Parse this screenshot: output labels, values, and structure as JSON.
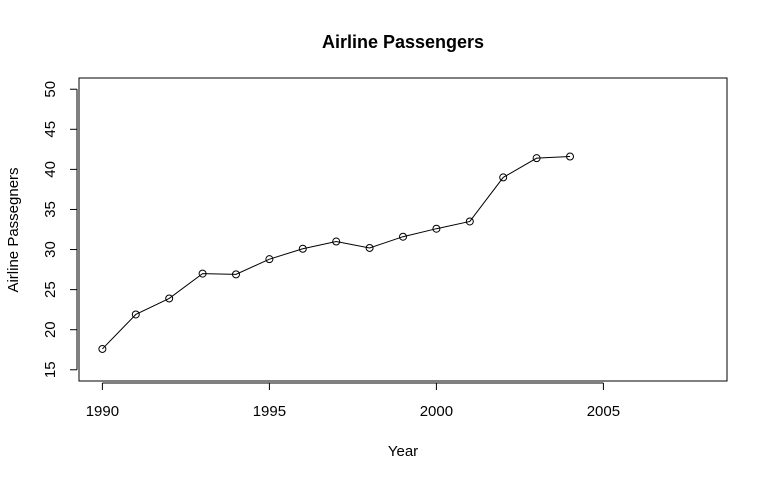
{
  "chart_data": {
    "type": "line",
    "title": "Airline Passengers",
    "xlabel": "Year",
    "ylabel": "Airline Passegners",
    "xlim": [
      1989.3,
      2008.7
    ],
    "ylim": [
      13.6,
      51.4
    ],
    "x_ticks": [
      1990,
      1995,
      2000,
      2005
    ],
    "y_ticks": [
      15,
      20,
      25,
      30,
      35,
      40,
      45,
      50
    ],
    "grid": false,
    "legend": "none",
    "marker": "open-circle",
    "x": [
      1990,
      1991,
      1992,
      1993,
      1994,
      1995,
      1996,
      1997,
      1998,
      1999,
      2000,
      2001,
      2002,
      2003,
      2004
    ],
    "series": [
      {
        "values": [
          17.6,
          21.9,
          23.9,
          27.0,
          26.9,
          28.8,
          30.1,
          31.0,
          30.2,
          31.6,
          32.6,
          33.5,
          39.0,
          41.4,
          41.6
        ]
      }
    ]
  }
}
